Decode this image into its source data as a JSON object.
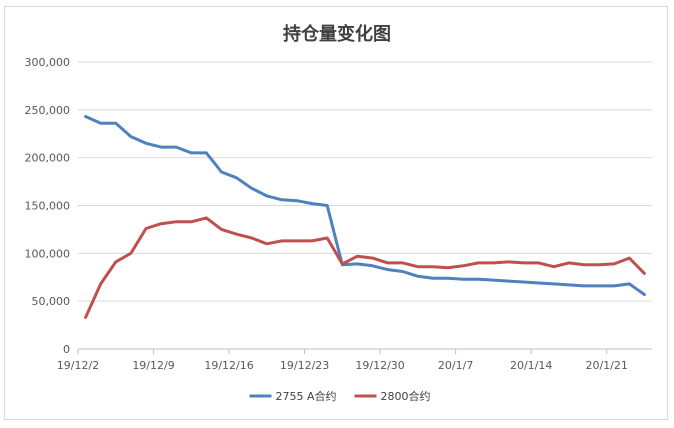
{
  "chart_data": {
    "type": "line",
    "title": "持仓量变化图",
    "x": [
      "19/12/2",
      "19/12/3",
      "19/12/4",
      "19/12/5",
      "19/12/6",
      "19/12/9",
      "19/12/10",
      "19/12/11",
      "19/12/12",
      "19/12/13",
      "19/12/16",
      "19/12/17",
      "19/12/18",
      "19/12/19",
      "19/12/20",
      "19/12/23",
      "19/12/24",
      "19/12/25",
      "19/12/26",
      "19/12/27",
      "19/12/30",
      "19/12/31",
      "20/1/2",
      "20/1/3",
      "20/1/6",
      "20/1/7",
      "20/1/8",
      "20/1/9",
      "20/1/10",
      "20/1/13",
      "20/1/14",
      "20/1/15",
      "20/1/16",
      "20/1/17",
      "20/1/20",
      "20/1/21",
      "20/1/22",
      "20/1/23"
    ],
    "x_tick_labels": [
      "19/12/2",
      "19/12/9",
      "19/12/16",
      "19/12/23",
      "19/12/30",
      "20/1/7",
      "20/1/14",
      "20/1/21"
    ],
    "x_tick_index": [
      0,
      5,
      10,
      15,
      20,
      25,
      30,
      35
    ],
    "y_tick_labels": [
      "0",
      "50,000",
      "100,000",
      "150,000",
      "200,000",
      "250,000",
      "300,000"
    ],
    "ylim": [
      0,
      300000
    ],
    "grid": true,
    "legend_position": "bottom",
    "series": [
      {
        "name": "2755 A合约",
        "color": "#4f81bd",
        "values": [
          243000,
          236000,
          236000,
          222000,
          215000,
          211000,
          211000,
          205000,
          205000,
          185000,
          179000,
          168000,
          160000,
          156000,
          155000,
          152000,
          150000,
          88000,
          89000,
          87000,
          83000,
          81000,
          76000,
          74000,
          74000,
          73000,
          73000,
          72000,
          71000,
          70000,
          69000,
          68000,
          67000,
          66000,
          66000,
          66000,
          68000,
          57000
        ]
      },
      {
        "name": "2800合约",
        "color": "#c0504d",
        "values": [
          33000,
          68000,
          91000,
          100000,
          126000,
          131000,
          133000,
          133000,
          137000,
          125000,
          120000,
          116000,
          110000,
          113000,
          113000,
          113000,
          116000,
          89000,
          97000,
          95000,
          90000,
          90000,
          86000,
          86000,
          85000,
          87000,
          90000,
          90000,
          91000,
          90000,
          90000,
          86000,
          90000,
          88000,
          88000,
          89000,
          95000,
          79000
        ]
      }
    ]
  }
}
